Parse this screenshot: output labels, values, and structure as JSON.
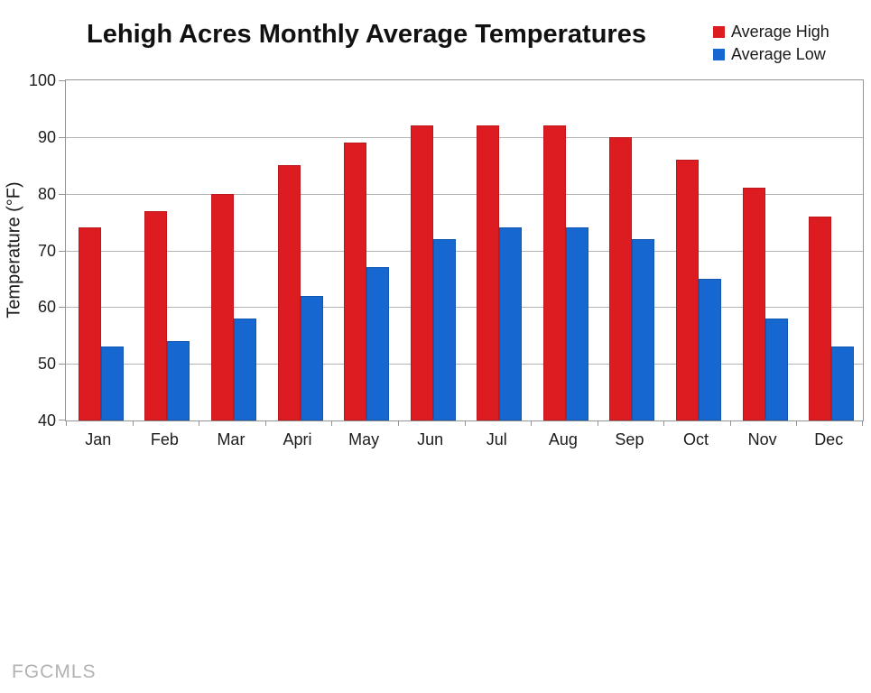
{
  "title": "Lehigh Acres Monthly Average Temperatures",
  "watermark": "FGCMLS",
  "legend": [
    {
      "label": "Average High",
      "color": "#dd1c22"
    },
    {
      "label": "Average Low",
      "color": "#1767d1"
    }
  ],
  "colors": {
    "bar_high": "#dd1c22",
    "bar_low": "#1767d1",
    "gridline": "#b3b3b3",
    "axis": "#949494",
    "text": "#1a1a1a",
    "watermark": "#b3b1b1",
    "background": "#ffffff"
  },
  "chart_data": {
    "type": "bar",
    "title": "Lehigh Acres Monthly Average Temperatures",
    "xlabel": "",
    "ylabel": "Temperature (°F)",
    "ylim": [
      40,
      100
    ],
    "yticks": [
      40,
      50,
      60,
      70,
      80,
      90,
      100
    ],
    "grid": true,
    "legend_position": "top-right",
    "categories": [
      "Jan",
      "Feb",
      "Mar",
      "Apri",
      "May",
      "Jun",
      "Jul",
      "Aug",
      "Sep",
      "Oct",
      "Nov",
      "Dec"
    ],
    "series": [
      {
        "name": "Average High",
        "color": "#dd1c22",
        "values": [
          74,
          77,
          80,
          85,
          89,
          92,
          92,
          92,
          90,
          86,
          81,
          76
        ]
      },
      {
        "name": "Average Low",
        "color": "#1767d1",
        "values": [
          53,
          54,
          58,
          62,
          67,
          72,
          74,
          74,
          72,
          65,
          58,
          53
        ]
      }
    ]
  }
}
